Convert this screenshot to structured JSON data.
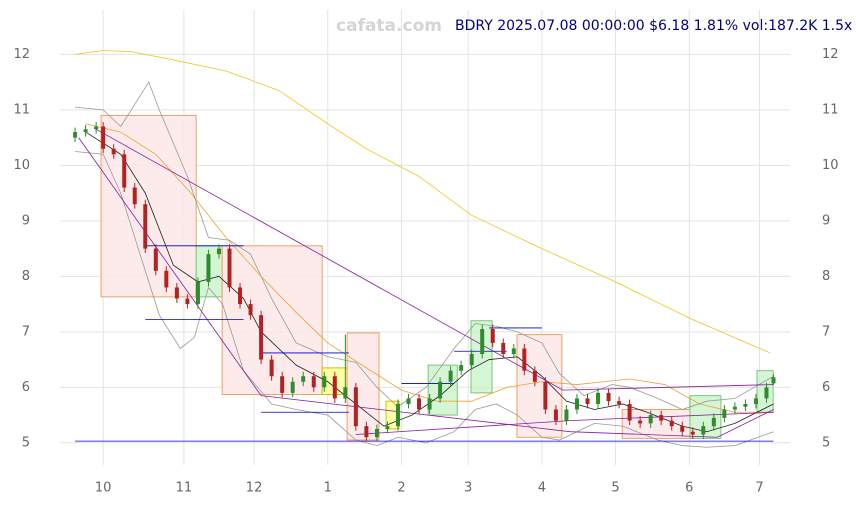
{
  "chart_data": {
    "type": "candlestick",
    "watermark": "cafata.com",
    "title": "BDRY 2025.07.08 00:00:00 $6.18 1.81% vol:187.2K 1.5x",
    "xlim": [
      -12.3,
      195.7
    ],
    "ylim": [
      4.6,
      12.8
    ],
    "xticks": [
      {
        "value": 0,
        "label": "10"
      },
      {
        "value": 23,
        "label": "11"
      },
      {
        "value": 43,
        "label": "12"
      },
      {
        "value": 64,
        "label": "1"
      },
      {
        "value": 85,
        "label": "2"
      },
      {
        "value": 104,
        "label": "3"
      },
      {
        "value": 125,
        "label": "4"
      },
      {
        "value": 146,
        "label": "5"
      },
      {
        "value": 167,
        "label": "6"
      },
      {
        "value": 187,
        "label": "7"
      }
    ],
    "yticks": [
      5,
      6,
      7,
      8,
      9,
      10,
      11,
      12
    ],
    "grid": true,
    "up_color": "#2e8b2e",
    "down_color": "#b22222",
    "candles": {
      "x": [
        -8,
        -5,
        -2,
        0,
        3,
        6,
        9,
        12,
        15,
        18,
        21,
        24,
        27,
        30,
        33,
        36,
        39,
        42,
        45,
        48,
        51,
        54,
        57,
        60,
        63,
        66,
        69,
        72,
        75,
        78,
        81,
        84,
        87,
        90,
        93,
        96,
        99,
        102,
        105,
        108,
        111,
        114,
        117,
        120,
        123,
        126,
        129,
        132,
        135,
        138,
        141,
        144,
        147,
        150,
        153,
        156,
        159,
        162,
        165,
        168,
        171,
        174,
        177,
        180,
        183,
        186,
        189,
        191
      ],
      "open": [
        10.5,
        10.6,
        10.65,
        10.7,
        10.3,
        10.2,
        9.6,
        9.3,
        8.5,
        8.1,
        7.8,
        7.6,
        7.5,
        7.9,
        8.4,
        8.5,
        7.8,
        7.5,
        7.3,
        6.5,
        6.2,
        5.9,
        6.1,
        6.2,
        6.0,
        6.2,
        5.8,
        6.0,
        5.3,
        5.1,
        5.25,
        5.3,
        5.7,
        5.8,
        5.6,
        5.8,
        6.1,
        6.3,
        6.4,
        6.6,
        7.05,
        6.8,
        6.6,
        6.7,
        6.3,
        6.1,
        5.6,
        5.4,
        5.6,
        5.8,
        5.7,
        5.9,
        5.75,
        5.7,
        5.4,
        5.35,
        5.5,
        5.4,
        5.3,
        5.2,
        5.15,
        5.3,
        5.45,
        5.6,
        5.65,
        5.7,
        5.8,
        6.07
      ],
      "high": [
        10.68,
        10.73,
        10.78,
        10.78,
        10.38,
        10.28,
        9.68,
        9.38,
        8.58,
        8.18,
        7.88,
        7.68,
        7.98,
        8.48,
        8.58,
        8.58,
        7.88,
        7.58,
        7.38,
        6.58,
        6.28,
        6.18,
        6.28,
        6.28,
        6.28,
        6.28,
        6.95,
        6.08,
        5.38,
        5.33,
        5.38,
        5.78,
        5.88,
        5.88,
        5.88,
        6.18,
        6.38,
        6.48,
        6.68,
        7.13,
        7.13,
        6.88,
        6.78,
        6.78,
        6.38,
        6.18,
        5.68,
        5.68,
        5.88,
        5.88,
        5.98,
        5.98,
        5.83,
        5.78,
        5.48,
        5.58,
        5.58,
        5.48,
        5.38,
        5.28,
        5.38,
        5.53,
        5.68,
        5.73,
        5.78,
        5.88,
        6.08,
        6.23
      ],
      "low": [
        10.42,
        10.52,
        10.57,
        10.22,
        10.12,
        9.52,
        9.22,
        8.42,
        8.02,
        7.72,
        7.52,
        7.42,
        7.42,
        7.82,
        8.32,
        7.72,
        7.42,
        7.22,
        6.42,
        6.12,
        5.82,
        5.82,
        6.02,
        5.92,
        5.92,
        5.72,
        5.72,
        5.22,
        5.02,
        5.02,
        5.17,
        5.22,
        5.62,
        5.52,
        5.52,
        5.72,
        6.02,
        6.22,
        6.32,
        6.52,
        6.72,
        6.52,
        6.52,
        6.22,
        6.02,
        5.52,
        5.32,
        5.32,
        5.52,
        5.62,
        5.62,
        5.67,
        5.62,
        5.32,
        5.27,
        5.27,
        5.32,
        5.22,
        5.12,
        5.07,
        5.07,
        5.22,
        5.37,
        5.52,
        5.57,
        5.62,
        5.72,
        6.05
      ],
      "close": [
        10.6,
        10.65,
        10.7,
        10.3,
        10.2,
        9.6,
        9.3,
        8.5,
        8.1,
        7.8,
        7.6,
        7.5,
        7.9,
        8.4,
        8.5,
        7.8,
        7.5,
        7.3,
        6.5,
        6.2,
        5.9,
        6.1,
        6.2,
        6.0,
        6.2,
        5.8,
        6.0,
        5.3,
        5.1,
        5.25,
        5.3,
        5.7,
        5.8,
        5.6,
        5.8,
        6.1,
        6.3,
        6.4,
        6.6,
        7.05,
        6.8,
        6.6,
        6.7,
        6.3,
        6.1,
        5.6,
        5.4,
        5.6,
        5.8,
        5.7,
        5.9,
        5.75,
        5.7,
        5.4,
        5.35,
        5.5,
        5.4,
        5.3,
        5.2,
        5.15,
        5.3,
        5.45,
        5.6,
        5.65,
        5.7,
        5.8,
        6.0,
        6.18
      ]
    },
    "boxes": [
      {
        "x0": -0.6,
        "x1": 26.5,
        "low": 7.63,
        "high": 10.9,
        "color": "#fde8e8"
      },
      {
        "x0": 26.5,
        "x1": 33.9,
        "low": 7.63,
        "high": 8.55,
        "color": "#ccf5cc"
      },
      {
        "x0": 33.9,
        "x1": 62.4,
        "low": 5.87,
        "high": 8.55,
        "color": "#fde8e8"
      },
      {
        "x0": 62.4,
        "x1": 69.5,
        "low": 5.87,
        "high": 6.35,
        "color": "#ffff99"
      },
      {
        "x0": 69.5,
        "x1": 78.6,
        "low": 5.05,
        "high": 6.98,
        "color": "#fde8e8"
      },
      {
        "x0": 80.6,
        "x1": 84.3,
        "low": 5.25,
        "high": 5.75,
        "color": "#ffff99"
      },
      {
        "x0": 92.6,
        "x1": 100.9,
        "low": 5.5,
        "high": 6.4,
        "color": "#ccf5cc"
      },
      {
        "x0": 104.8,
        "x1": 110.8,
        "low": 5.9,
        "high": 7.2,
        "color": "#ccf5cc"
      },
      {
        "x0": 117.9,
        "x1": 130.7,
        "low": 5.1,
        "high": 6.95,
        "color": "#fde8e8"
      },
      {
        "x0": 147.9,
        "x1": 167.2,
        "low": 5.08,
        "high": 5.6,
        "color": "#fde8e8"
      },
      {
        "x0": 167.2,
        "x1": 176,
        "low": 5.08,
        "high": 5.85,
        "color": "#ccf5cc"
      },
      {
        "x0": 186.3,
        "x1": 190.9,
        "low": 5.55,
        "high": 6.3,
        "color": "#ccf5cc"
      }
    ],
    "lines": [
      {
        "color": "#f5c518",
        "x": [
          -8,
          0,
          8,
          20,
          35,
          50,
          64,
          75,
          90,
          105,
          125,
          146,
          167,
          190
        ],
        "values": [
          12.0,
          12.07,
          12.05,
          11.9,
          11.7,
          11.35,
          10.75,
          10.3,
          9.8,
          9.1,
          8.5,
          7.9,
          7.25,
          6.62
        ]
      },
      {
        "color": "#f0a030",
        "x": [
          -5,
          5,
          15,
          25,
          35,
          45,
          55,
          64,
          75,
          85,
          95,
          105,
          115,
          125,
          135,
          150,
          160,
          170,
          180,
          191
        ],
        "values": [
          10.75,
          10.6,
          10.2,
          9.5,
          8.7,
          8.0,
          7.35,
          6.8,
          6.35,
          5.95,
          5.75,
          5.75,
          6.0,
          6.1,
          6.05,
          6.15,
          6.05,
          5.7,
          5.55,
          5.55
        ]
      },
      {
        "color": "#222222",
        "x": [
          -5,
          5,
          12,
          20,
          27,
          33,
          40,
          45,
          55,
          64,
          72,
          80,
          88,
          96,
          104,
          110,
          118,
          125,
          132,
          140,
          148,
          155,
          165,
          172,
          180,
          191
        ],
        "values": [
          10.6,
          10.2,
          9.5,
          8.2,
          7.9,
          8.0,
          7.6,
          7.0,
          6.4,
          6.1,
          5.7,
          5.3,
          5.5,
          5.85,
          6.3,
          6.5,
          6.55,
          6.2,
          5.75,
          5.6,
          5.7,
          5.55,
          5.3,
          5.2,
          5.35,
          5.7
        ]
      },
      {
        "color": "#999999",
        "x": [
          -8,
          0,
          5,
          10,
          13,
          16,
          24,
          30,
          36,
          42,
          48,
          55,
          64,
          72,
          78,
          84,
          92,
          100,
          106,
          112,
          118,
          125,
          130,
          137,
          145,
          150,
          158,
          165,
          172,
          180,
          191
        ],
        "values": [
          11.05,
          11.0,
          10.7,
          11.2,
          11.5,
          11.0,
          9.8,
          8.7,
          8.65,
          8.4,
          7.6,
          6.8,
          6.55,
          6.45,
          6.0,
          5.65,
          6.0,
          6.7,
          7.15,
          7.1,
          7.0,
          6.8,
          6.25,
          5.85,
          6.05,
          6.0,
          5.8,
          5.6,
          5.75,
          5.8,
          6.2
        ]
      },
      {
        "color": "#999999",
        "x": [
          -8,
          0,
          5,
          10,
          16,
          22,
          26,
          30,
          34,
          40,
          48,
          55,
          64,
          72,
          78,
          84,
          92,
          100,
          106,
          112,
          118,
          125,
          130,
          140,
          148,
          158,
          165,
          172,
          180,
          191
        ],
        "values": [
          10.25,
          10.2,
          9.5,
          8.5,
          7.3,
          6.7,
          6.9,
          7.8,
          7.5,
          6.3,
          5.7,
          5.6,
          5.5,
          5.05,
          4.95,
          5.1,
          5.0,
          5.2,
          5.6,
          5.7,
          5.5,
          5.1,
          5.05,
          5.35,
          5.3,
          5.05,
          4.95,
          4.92,
          4.95,
          5.2
        ]
      },
      {
        "color": "#8b1a9b",
        "x": [
          -2,
          131,
          191
        ],
        "values": [
          10.65,
          5.95,
          6.05
        ]
      },
      {
        "color": "#8b1a9b",
        "x": [
          -7,
          45,
          133,
          175,
          191
        ],
        "values": [
          10.5,
          5.85,
          5.2,
          5.1,
          5.6
        ]
      },
      {
        "color": "#8b1a9b",
        "x": [
          72,
          133,
          191
        ],
        "values": [
          5.15,
          5.4,
          5.55
        ]
      },
      {
        "color": "#0000cc",
        "x": [
          -8,
          191
        ],
        "values": [
          5.03,
          5.03
        ]
      },
      {
        "color": "#0000cc",
        "x": [
          12,
          40
        ],
        "values": [
          8.55,
          8.55
        ]
      },
      {
        "color": "#0000cc",
        "x": [
          12,
          40
        ],
        "values": [
          7.22,
          7.22
        ]
      },
      {
        "color": "#0000cc",
        "x": [
          45,
          70
        ],
        "values": [
          6.62,
          6.62
        ]
      },
      {
        "color": "#0000cc",
        "x": [
          45,
          70
        ],
        "values": [
          5.55,
          5.55
        ]
      },
      {
        "color": "#0000cc",
        "x": [
          85,
          100
        ],
        "values": [
          6.07,
          6.07
        ]
      },
      {
        "color": "#0000cc",
        "x": [
          100,
          115
        ],
        "values": [
          6.65,
          6.65
        ]
      },
      {
        "color": "#0000cc",
        "x": [
          110,
          125
        ],
        "values": [
          7.07,
          7.07
        ]
      }
    ]
  }
}
